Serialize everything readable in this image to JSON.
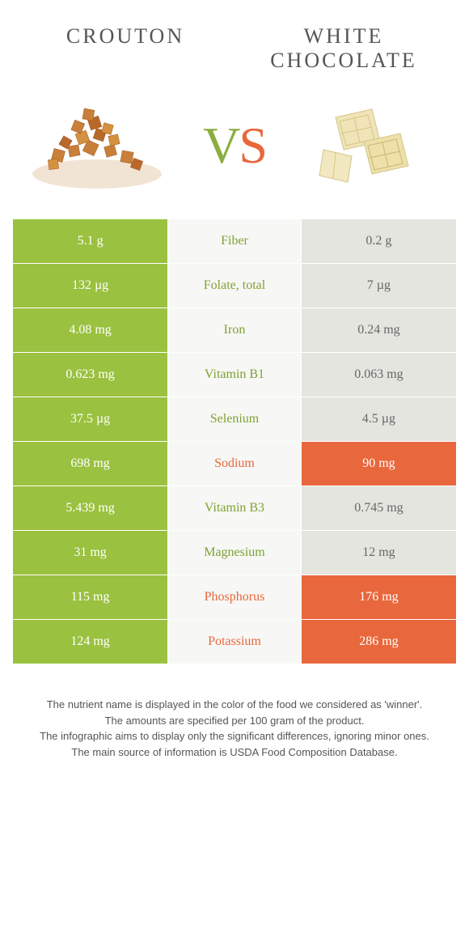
{
  "header": {
    "left_title": "CROUTON",
    "right_title": "WHITE CHOCOLATE",
    "vs_v": "V",
    "vs_s": "S"
  },
  "colors": {
    "green": "#9ac13f",
    "orange": "#e8673c",
    "grey": "#e5e5e0",
    "mid_bg": "#f7f7f5",
    "text_green": "#7da333",
    "text_orange": "#e8673c"
  },
  "rows": [
    {
      "left": "5.1 g",
      "mid": "Fiber",
      "right": "0.2 g",
      "winner": "left"
    },
    {
      "left": "132 µg",
      "mid": "Folate, total",
      "right": "7 µg",
      "winner": "left"
    },
    {
      "left": "4.08 mg",
      "mid": "Iron",
      "right": "0.24 mg",
      "winner": "left"
    },
    {
      "left": "0.623 mg",
      "mid": "Vitamin B1",
      "right": "0.063 mg",
      "winner": "left"
    },
    {
      "left": "37.5 µg",
      "mid": "Selenium",
      "right": "4.5 µg",
      "winner": "left"
    },
    {
      "left": "698 mg",
      "mid": "Sodium",
      "right": "90 mg",
      "winner": "right"
    },
    {
      "left": "5.439 mg",
      "mid": "Vitamin B3",
      "right": "0.745 mg",
      "winner": "left"
    },
    {
      "left": "31 mg",
      "mid": "Magnesium",
      "right": "12 mg",
      "winner": "left"
    },
    {
      "left": "115 mg",
      "mid": "Phosphorus",
      "right": "176 mg",
      "winner": "right"
    },
    {
      "left": "124 mg",
      "mid": "Potassium",
      "right": "286 mg",
      "winner": "right"
    }
  ],
  "footer": {
    "l1": "The nutrient name is displayed in the color of the food we considered as 'winner'.",
    "l2": "The amounts are specified per 100 gram of the product.",
    "l3": "The infographic aims to display only the significant differences, ignoring minor ones.",
    "l4": "The main source of information is USDA Food Composition Database."
  }
}
